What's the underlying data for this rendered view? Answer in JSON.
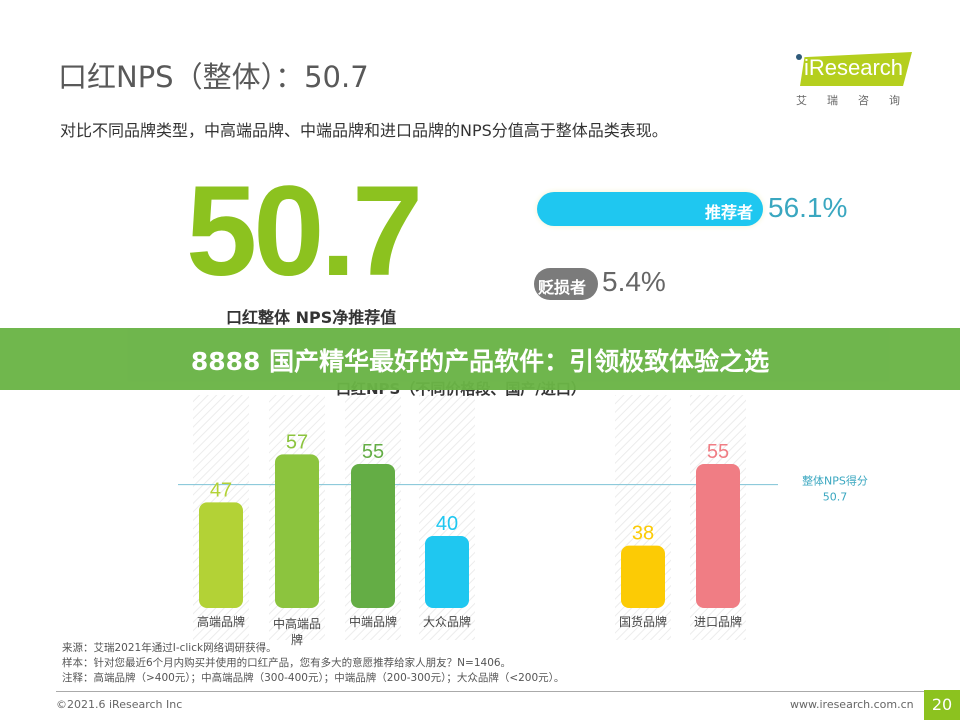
{
  "header": {
    "title": "口红NPS（整体）：50.7",
    "subtitle": "对比不同品牌类型，中高端品牌、中端品牌和进口品牌的NPS分值高于整体品类表现。"
  },
  "logo": {
    "text": "iResearch",
    "cn": "艾瑞咨询"
  },
  "summary": {
    "nps_value": "50.7",
    "nps_label": "口红整体 NPS净推荐值",
    "promoter_label": "推荐者",
    "promoter_value": "56.1%",
    "promoter_fraction": 0.561,
    "detractor_label": "贬损者",
    "detractor_value": "5.4%",
    "detractor_fraction": 0.054,
    "colors": {
      "nps": "#8cc21f",
      "promoter": "#1fc7f0",
      "detractor": "#7b7b7b"
    }
  },
  "banner": {
    "text": "8888 国产精华最好的产品软件：引领极致体验之选",
    "color": "#6ab446"
  },
  "chart_data": {
    "type": "bar",
    "title": "口红NPS（不同价格段、国产/进口）",
    "categories": [
      "高端品牌",
      "中高端品牌",
      "中端品牌",
      "大众品牌",
      "国货品牌",
      "进口品牌"
    ],
    "values": [
      47,
      57,
      55,
      40,
      38,
      55
    ],
    "colors": [
      "#b3d236",
      "#8cc43e",
      "#64ad45",
      "#1fc7f0",
      "#fccb05",
      "#f07d84"
    ],
    "reference_line": {
      "label": "整体NPS得分",
      "value": 50.7,
      "value_label": "50.7",
      "color": "#7ec3d6"
    },
    "ylim": [
      25,
      60
    ],
    "grid": false
  },
  "footer": {
    "source": "来源：艾瑞2021年通过I-click网络调研获得。",
    "sample": "样本：针对您最近6个月内购买并使用的口红产品，您有多大的意愿推荐给家人朋友？N=1406。",
    "note": "注释：高端品牌（>400元）；中高端品牌（300-400元）；中端品牌（200-300元）；大众品牌（<200元）。",
    "copyright": "©2021.6 iResearch Inc",
    "site": "www.iresearch.com.cn",
    "page": "20"
  }
}
